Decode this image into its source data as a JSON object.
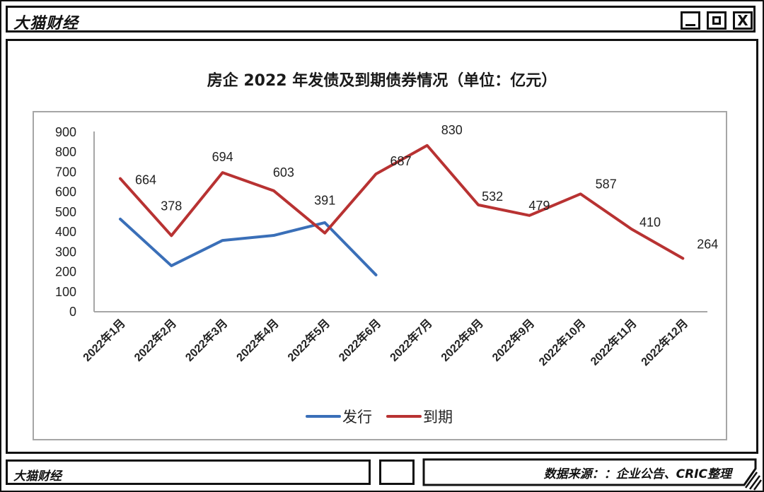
{
  "window": {
    "title": "大猫财经",
    "buttons": {
      "minimize": "minimize",
      "maximize": "maximize",
      "close": "X"
    }
  },
  "footer": {
    "brand": "大猫财经",
    "source": "数据来源：：企业公告、CRIC整理"
  },
  "colors": {
    "issue": "#3a6fb8",
    "maturity": "#b83232",
    "axis": "#a6a6a6",
    "frame": "#111111"
  },
  "chart_data": {
    "type": "line",
    "title": "房企 2022 年发债及到期债券情况（单位：亿元）",
    "xlabel": "",
    "ylabel": "",
    "ylim": [
      0,
      900
    ],
    "yticks": [
      0,
      100,
      200,
      300,
      400,
      500,
      600,
      700,
      800,
      900
    ],
    "grid": false,
    "legend_position": "bottom",
    "categories": [
      "2022年1月",
      "2022年2月",
      "2022年3月",
      "2022年4月",
      "2022年5月",
      "2022年6月",
      "2022年7月",
      "2022年8月",
      "2022年9月",
      "2022年10月",
      "2022年11月",
      "2022年12月"
    ],
    "series": [
      {
        "name": "发行",
        "color": "#3a6fb8",
        "values": [
          461,
          227,
          354,
          379,
          443,
          181,
          null,
          null,
          null,
          null,
          null,
          null
        ],
        "data_labels": false
      },
      {
        "name": "到期",
        "color": "#b83232",
        "values": [
          664,
          378,
          694,
          603,
          391,
          687,
          830,
          532,
          479,
          587,
          410,
          264
        ],
        "data_labels": true
      }
    ]
  }
}
